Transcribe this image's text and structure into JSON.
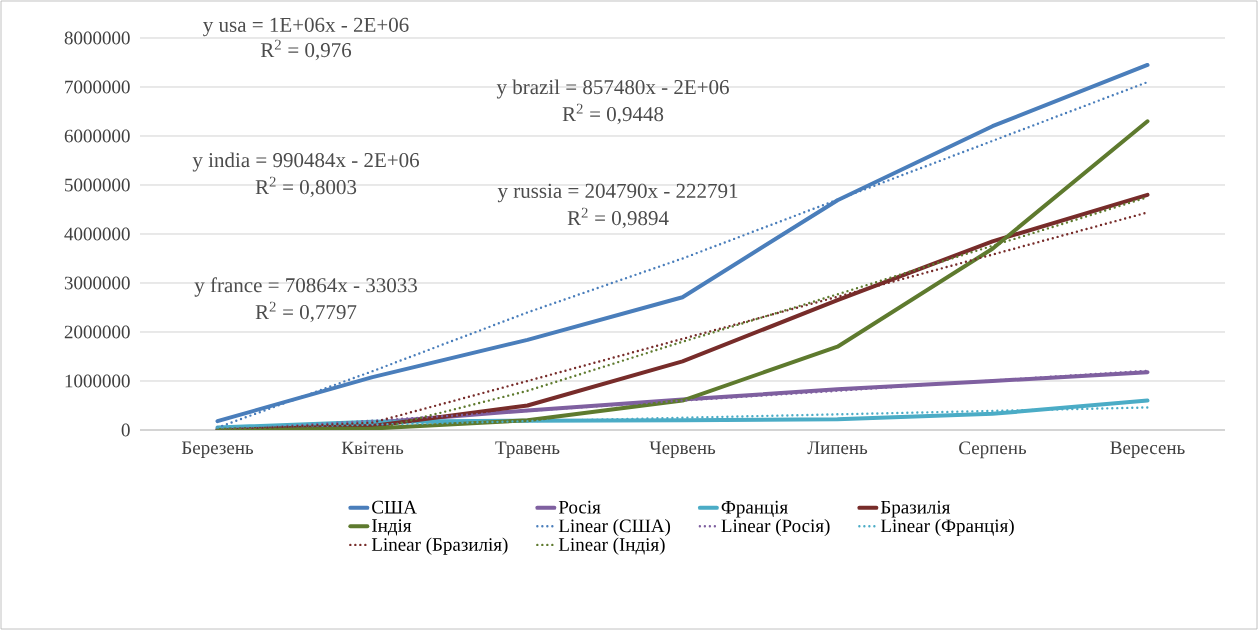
{
  "chart_data": {
    "type": "line",
    "categories": [
      "Березень",
      "Квітень",
      "Травень",
      "Червень",
      "Липень",
      "Серпень",
      "Вересень"
    ],
    "series": [
      {
        "name": "США",
        "color": "#4a7ebb",
        "values": [
          180000,
          1080000,
          1840000,
          2710000,
          4690000,
          6200000,
          7450000
        ]
      },
      {
        "name": "Росія",
        "color": "#7f60a0",
        "values": [
          20000,
          150000,
          400000,
          620000,
          830000,
          1000000,
          1180000
        ]
      },
      {
        "name": "Франція",
        "color": "#4bacc6",
        "values": [
          50000,
          170000,
          190000,
          200000,
          220000,
          330000,
          600000
        ]
      },
      {
        "name": "Бразилія",
        "color": "#772c2a",
        "values": [
          0,
          80000,
          500000,
          1400000,
          2650000,
          3850000,
          4800000
        ]
      },
      {
        "name": "Індія",
        "color": "#5e7a2e",
        "values": [
          0,
          30000,
          200000,
          600000,
          1700000,
          3700000,
          6300000
        ]
      },
      {
        "name": "Linear (США)",
        "color": "#4a7ebb",
        "line_style": "dotted",
        "values": [
          50000,
          1200000,
          2400000,
          3500000,
          4700000,
          5900000,
          7100000
        ]
      },
      {
        "name": "Linear (Росія)",
        "color": "#7f60a0",
        "line_style": "dotted",
        "values": [
          0,
          190000,
          390000,
          600000,
          800000,
          1010000,
          1210000
        ]
      },
      {
        "name": "Linear (Франція)",
        "color": "#4bacc6",
        "line_style": "dotted",
        "values": [
          40000,
          110000,
          180000,
          250000,
          320000,
          390000,
          460000
        ]
      },
      {
        "name": "Linear (Бразилія)",
        "color": "#772c2a",
        "line_style": "dotted",
        "values": [
          0,
          150000,
          1000000,
          1860000,
          2720000,
          3580000,
          4440000
        ]
      },
      {
        "name": "Linear (Індія)",
        "color": "#5e7a2e",
        "line_style": "dotted",
        "values": [
          0,
          0,
          800000,
          1800000,
          2770000,
          3760000,
          4750000
        ]
      }
    ],
    "annotations": [
      "y usa = 1E+06x - 2E+06",
      "R$^{2}$ = 0,976",
      "y brazil = 857480x - 2E+06",
      "R$^{2}$ = 0,9448",
      "y india = 990484x - 2E+06",
      "R$^{2}$ = 0,8003",
      "y russia = 204790x - 222791",
      "R$^{2}$ = 0,9894",
      "y france = 70864x - 33033",
      "R$^{2}$ = 0,7797"
    ],
    "ylim": [
      0,
      8000000
    ],
    "yticks": [
      0,
      1000000,
      2000000,
      3000000,
      4000000,
      5000000,
      6000000,
      7000000,
      8000000
    ],
    "grid": "y",
    "legend": "bottom"
  }
}
